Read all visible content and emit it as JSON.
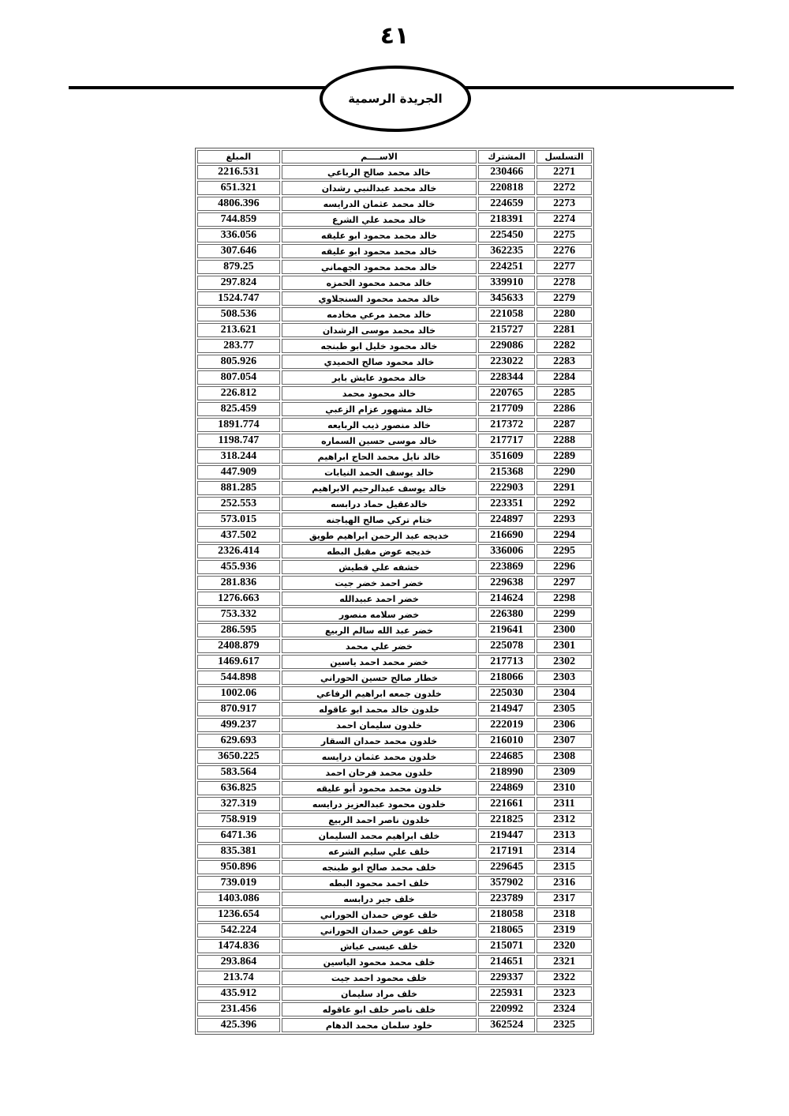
{
  "page_number": "٤١",
  "header_title": "الجريدة الرسمية",
  "table": {
    "columns": [
      "التسلسل",
      "المشترك",
      "الاســــم",
      "المبلغ"
    ],
    "rows": [
      [
        "2271",
        "230466",
        "خالد محمد صالح الرباعي",
        "2216.531"
      ],
      [
        "2272",
        "220818",
        "خالد محمد عبدالنبي رشدان",
        "651.321"
      ],
      [
        "2273",
        "224659",
        "خالد محمد عثمان الدرايسه",
        "4806.396"
      ],
      [
        "2274",
        "218391",
        "خالد محمد علي الشرع",
        "744.859"
      ],
      [
        "2275",
        "225450",
        "خالد محمد محمود ابو عليقه",
        "336.056"
      ],
      [
        "2276",
        "362235",
        "خالد محمد محمود ابو عليقه",
        "307.646"
      ],
      [
        "2277",
        "224251",
        "خالد محمد محمود الجهماني",
        "879.25"
      ],
      [
        "2278",
        "339910",
        "خالد محمد محمود الحمزه",
        "297.824"
      ],
      [
        "2279",
        "345633",
        "خالد محمد محمود السنجلاوي",
        "1524.747"
      ],
      [
        "2280",
        "221058",
        "خالد محمد مرعي  مخادمه",
        "508.536"
      ],
      [
        "2281",
        "215727",
        "خالد محمد موسى الرشدان",
        "213.621"
      ],
      [
        "2282",
        "229086",
        "خالد محمود خليل ابو طبنجه",
        "283.77"
      ],
      [
        "2283",
        "223022",
        "خالد محمود صالح الحميدي",
        "805.926"
      ],
      [
        "2284",
        "228344",
        "خالد محمود عايش باير",
        "807.054"
      ],
      [
        "2285",
        "220765",
        "خالد محمود محمد",
        "226.812"
      ],
      [
        "2286",
        "217709",
        "خالد مشهور عزام الزعبي",
        "825.459"
      ],
      [
        "2287",
        "217372",
        "خالد منصور ذيب الربايعه",
        "1891.774"
      ],
      [
        "2288",
        "217717",
        "خالد موسى حسين السماره",
        "1198.747"
      ],
      [
        "2289",
        "351609",
        "خالد نايل محمد الحاج ابراهيم",
        "318.244"
      ],
      [
        "2290",
        "215368",
        "خالد يوسف الحمد النيابات",
        "447.909"
      ],
      [
        "2291",
        "222903",
        "خالد يوسف عبدالرحيم الابراهيم",
        "881.285"
      ],
      [
        "2292",
        "223351",
        "خالدعقيل حماد درابسه",
        "252.553"
      ],
      [
        "2293",
        "224897",
        "ختام تركي صالح الهياجنه",
        "573.015"
      ],
      [
        "2294",
        "216690",
        "خديجه عبد الرحمن ابراهيم طويق",
        "437.502"
      ],
      [
        "2295",
        "336006",
        "خديجه عوض مقبل البطه",
        "2326.414"
      ],
      [
        "2296",
        "223869",
        "خشفه علي قطيش",
        "455.936"
      ],
      [
        "2297",
        "229638",
        "خضر  احمد خضر  جيت",
        "281.836"
      ],
      [
        "2298",
        "214624",
        "خضر  احمد عبيدالله",
        "1276.663"
      ],
      [
        "2299",
        "226380",
        "خضر سلامه منصور",
        "753.332"
      ],
      [
        "2300",
        "219641",
        "خضر عبد الله سالم الربيع",
        "286.595"
      ],
      [
        "2301",
        "225078",
        "خضر علي محمد",
        "2408.879"
      ],
      [
        "2302",
        "217713",
        "خضر محمد احمد ياسين",
        "1469.617"
      ],
      [
        "2303",
        "218066",
        "خطار صالح حسين الحوراني",
        "544.898"
      ],
      [
        "2304",
        "225030",
        "خلدون جمعه ابراهيم الرفاعي",
        "1002.06"
      ],
      [
        "2305",
        "214947",
        "خلدون خالد محمد ابو عاقوله",
        "870.917"
      ],
      [
        "2306",
        "222019",
        "خلدون سليمان احمد",
        "499.237"
      ],
      [
        "2307",
        "216010",
        "خلدون محمد حمدان السقار",
        "629.693"
      ],
      [
        "2308",
        "224685",
        "خلدون محمد عثمان درايسه",
        "3650.225"
      ],
      [
        "2309",
        "218990",
        "خلدون محمد فرحان احمد",
        "583.564"
      ],
      [
        "2310",
        "224869",
        "خلدون محمد محمود أبو عليقه",
        "636.825"
      ],
      [
        "2311",
        "221661",
        "خلدون محمود عبدالعزيز درايسه",
        "327.319"
      ],
      [
        "2312",
        "221825",
        "خلدون ناصر احمد الربيع",
        "758.919"
      ],
      [
        "2313",
        "219447",
        "خلف  ابراهيم محمد  السليمان",
        "6471.36"
      ],
      [
        "2314",
        "217191",
        "خلف  علي  سليم  الشرعه",
        "835.381"
      ],
      [
        "2315",
        "229645",
        "خلف  محمد صالح  ابو طبنجه",
        "950.896"
      ],
      [
        "2316",
        "357902",
        "خلف احمد محمود البطه",
        "739.019"
      ],
      [
        "2317",
        "223789",
        "خلف جبر درابسه",
        "1403.086"
      ],
      [
        "2318",
        "218058",
        "خلف عوض حمدان الحوراني",
        "1236.654"
      ],
      [
        "2319",
        "218065",
        "خلف عوض حمدان الحوراني",
        "542.224"
      ],
      [
        "2320",
        "215071",
        "خلف عيسى عياش",
        "1474.836"
      ],
      [
        "2321",
        "214651",
        "خلف محمد محمود الياسين",
        "293.864"
      ],
      [
        "2322",
        "229337",
        "خلف محمود احمد جيت",
        "213.74"
      ],
      [
        "2323",
        "225931",
        "خلف مراد سليمان",
        "435.912"
      ],
      [
        "2324",
        "220992",
        "خلف ناصر خلف ابو عاقوله",
        "231.456"
      ],
      [
        "2325",
        "362524",
        "خلود سلمان محمد الدهام",
        "425.396"
      ]
    ]
  }
}
